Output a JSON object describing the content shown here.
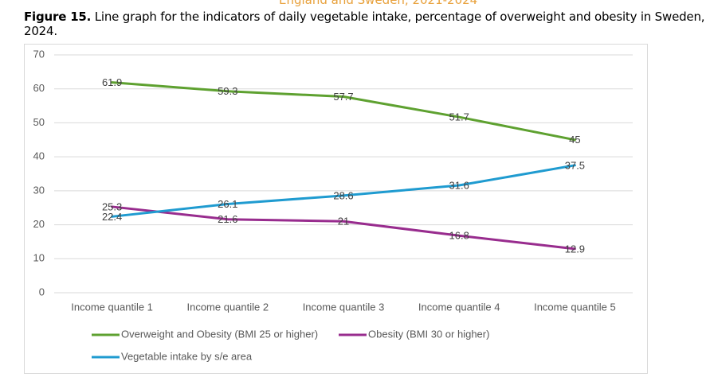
{
  "header": {
    "fragment": "England and Sweden, 2021-2024"
  },
  "chart_data": {
    "type": "line",
    "figure_label": "Figure 15.",
    "title": "Line graph for the indicators of daily vegetable intake, percentage of overweight and obesity in Sweden, 2024.",
    "categories": [
      "Income quantile 1",
      "Income quantile 2",
      "Income quantile 3",
      "Income quantile  4",
      "Income quantile 5"
    ],
    "series": [
      {
        "name": "Overweight and Obesity (BMI 25 or higher)",
        "color": "#5ea130",
        "values": [
          61.9,
          59.3,
          57.7,
          51.7,
          45
        ]
      },
      {
        "name": "Obesity (BMI 30 or higher)",
        "color": "#982c8e",
        "values": [
          25.3,
          21.6,
          21,
          16.8,
          12.9
        ]
      },
      {
        "name": "Vegetable intake by s/e area",
        "color": "#1f9bd0",
        "values": [
          22.4,
          26.1,
          28.6,
          31.6,
          37.5
        ]
      }
    ],
    "ylim": [
      0,
      70
    ],
    "yticks": [
      0,
      10,
      20,
      30,
      40,
      50,
      60,
      70
    ],
    "grid": true,
    "legend": "bottom"
  }
}
